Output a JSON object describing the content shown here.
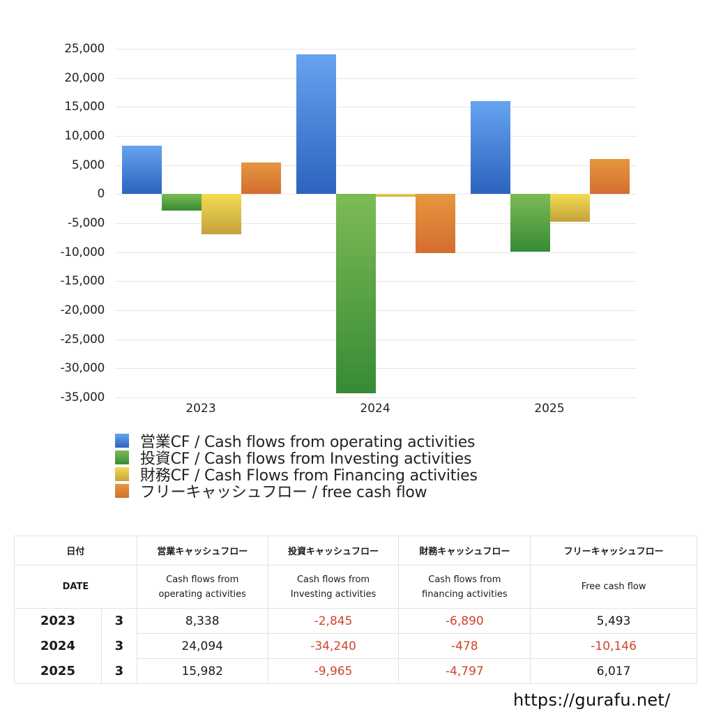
{
  "chart_data": {
    "type": "bar",
    "title": "",
    "xlabel": "",
    "ylabel": "",
    "categories": [
      "2023",
      "2024",
      "2025"
    ],
    "ylim": [
      -35000,
      25000
    ],
    "yticks": [
      "25,000",
      "20,000",
      "15,000",
      "10,000",
      "5,000",
      "0",
      "-5,000",
      "-10,000",
      "-15,000",
      "-20,000",
      "-25,000",
      "-30,000",
      "-35,000"
    ],
    "grid": true,
    "legend_position": "bottom",
    "series": [
      {
        "name": "営業CF / Cash flows from operating activities",
        "values": [
          8338,
          24094,
          15982
        ],
        "color_top": "#66a3f0",
        "color_bottom": "#2c63bf"
      },
      {
        "name": "投資CF / Cash flows from Investing activities",
        "values": [
          -2845,
          -34240,
          -9965
        ],
        "color_top": "#7dbb55",
        "color_bottom": "#378a36"
      },
      {
        "name": "財務CF / Cash Flows from Financing activities",
        "values": [
          -6890,
          -478,
          -4797
        ],
        "color_top": "#f3dc52",
        "color_bottom": "#c4a23c"
      },
      {
        "name": "フリーキャッシュフロー / free cash flow",
        "values": [
          5493,
          -10146,
          6017
        ],
        "color_top": "#e6973f",
        "color_bottom": "#d46d2f"
      }
    ]
  },
  "table": {
    "header_jp": {
      "date": "日付",
      "operating": "営業キャッシュフロー",
      "investing": "投資キャッシュフロー",
      "financing": "財務キャッシュフロー",
      "free": "フリーキャッシュフロー"
    },
    "header_en": {
      "date": "DATE",
      "operating_1": "Cash flows from",
      "operating_2": "operating activities",
      "investing_1": "Cash flows from",
      "investing_2": "Investing activities",
      "financing_1": "Cash flows from",
      "financing_2": "financing activities",
      "free": "Free cash flow"
    },
    "rows": [
      {
        "year": "2023",
        "month": "3",
        "operating": "8,338",
        "investing": "-2,845",
        "financing": "-6,890",
        "free": "5,493"
      },
      {
        "year": "2024",
        "month": "3",
        "operating": "24,094",
        "investing": "-34,240",
        "financing": "-478",
        "free": "-10,146"
      },
      {
        "year": "2025",
        "month": "3",
        "operating": "15,982",
        "investing": "-9,965",
        "financing": "-4,797",
        "free": "6,017"
      }
    ],
    "negative_color": "#d0432f"
  },
  "footer": {
    "url": "https://gurafu.net/"
  }
}
